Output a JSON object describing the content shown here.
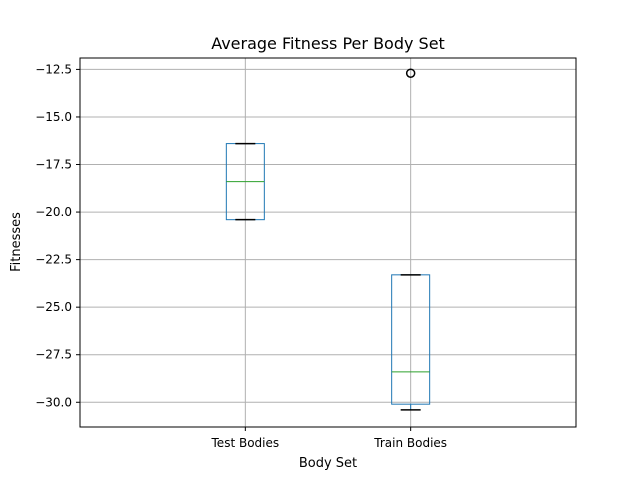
{
  "chart_data": {
    "type": "box",
    "title": "Average Fitness Per Body Set",
    "xlabel": "Body Set",
    "ylabel": "Fitnesses",
    "ylim": [
      -31.3,
      -11.9
    ],
    "yticks": [
      -30.0,
      -27.5,
      -25.0,
      -22.5,
      -20.0,
      -17.5,
      -15.0,
      -12.5
    ],
    "ytick_labels": [
      "−30.0",
      "−27.5",
      "−25.0",
      "−22.5",
      "−20.0",
      "−17.5",
      "−15.0",
      "−12.5"
    ],
    "grid": true,
    "categories": [
      "Test Bodies",
      "Train Bodies"
    ],
    "boxes": [
      {
        "name": "Test Bodies",
        "whisker_low": -20.4,
        "q1": -20.4,
        "median": -18.4,
        "q3": -16.4,
        "whisker_high": -16.4,
        "outliers": []
      },
      {
        "name": "Train Bodies",
        "whisker_low": -30.4,
        "q1": -30.1,
        "median": -28.4,
        "q3": -23.3,
        "whisker_high": -23.3,
        "outliers": [
          -12.7
        ]
      }
    ],
    "colors": {
      "box": "#1f77b4",
      "median": "#2ca02c",
      "whisker": "#000000",
      "grid": "#b0b0b0",
      "outlier": "#000000"
    }
  }
}
